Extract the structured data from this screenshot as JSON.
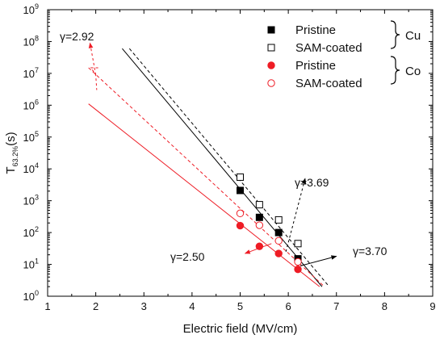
{
  "chart_data": {
    "type": "scatter",
    "xlabel": "Electric field (MV/cm)",
    "ylabel_main": "T",
    "ylabel_sub": "63.2%",
    "ylabel_unit": "(s)",
    "xlim": [
      1,
      9
    ],
    "ylim_log10": [
      0,
      9
    ],
    "y_scale": "log",
    "x_ticks": [
      "1",
      "2",
      "3",
      "4",
      "5",
      "6",
      "7",
      "8",
      "9"
    ],
    "y_tick_base": "10",
    "y_tick_exponents": [
      "0",
      "1",
      "2",
      "3",
      "4",
      "5",
      "6",
      "7",
      "8",
      "9"
    ],
    "grid": false,
    "legend_position": "top-right",
    "group_labels": [
      "Cu",
      "Co"
    ],
    "series": [
      {
        "name": "Pristine",
        "group": "Cu",
        "marker": "square-filled",
        "color": "#000000",
        "points": [
          [
            5.0,
            2100
          ],
          [
            5.4,
            300
          ],
          [
            5.8,
            100
          ],
          [
            6.2,
            15
          ]
        ],
        "fit": {
          "x": [
            2.55,
            6.7
          ],
          "y": [
            60000000,
            2
          ],
          "dash": false
        }
      },
      {
        "name": "SAM-coated",
        "group": "Cu",
        "marker": "square-open",
        "color": "#000000",
        "points": [
          [
            5.0,
            5500
          ],
          [
            5.4,
            750
          ],
          [
            5.8,
            250
          ],
          [
            6.2,
            45
          ]
        ],
        "fit": {
          "x": [
            2.7,
            6.85
          ],
          "y": [
            60000000,
            2
          ],
          "dash": true
        }
      },
      {
        "name": "Pristine",
        "group": "Co",
        "marker": "circle-filled",
        "color": "#ee1c25",
        "points": [
          [
            5.0,
            165
          ],
          [
            5.4,
            37
          ],
          [
            5.8,
            22
          ],
          [
            6.2,
            7
          ]
        ],
        "fit": {
          "x": [
            1.85,
            6.65
          ],
          "y": [
            1100000,
            2
          ],
          "dash": false
        }
      },
      {
        "name": "SAM-coated",
        "group": "Co",
        "marker": "circle-open",
        "color": "#ee1c25",
        "points": [
          [
            5.0,
            400
          ],
          [
            5.4,
            170
          ],
          [
            5.8,
            55
          ],
          [
            6.2,
            12
          ]
        ],
        "fit": {
          "x": [
            1.85,
            6.75
          ],
          "y": [
            15000000,
            2
          ],
          "dash": true
        }
      }
    ],
    "annotations": [
      {
        "text": "γ=2.92",
        "color": "#ee1c25"
      },
      {
        "text": "γ=3.69",
        "color": "#000000"
      },
      {
        "text": "γ=2.50",
        "color": "#ee1c25"
      },
      {
        "text": "γ=3.70",
        "color": "#000000"
      }
    ]
  }
}
